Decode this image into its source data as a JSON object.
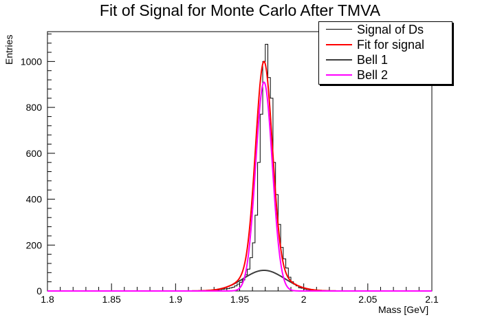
{
  "chart_data": {
    "type": "line",
    "title": "Fit of Signal for Monte Carlo After TMVA",
    "xlabel": "Mass [GeV]",
    "ylabel": "Entries",
    "xlim": [
      1.8,
      2.1
    ],
    "ylim": [
      0,
      1130
    ],
    "xticks": [
      1.8,
      1.85,
      1.9,
      1.95,
      2.0,
      2.05,
      2.1
    ],
    "xtick_labels": [
      "1.8",
      "1.85",
      "1.9",
      "1.95",
      "2",
      "2.05",
      "2.1"
    ],
    "yticks": [
      0,
      200,
      400,
      600,
      800,
      1000
    ],
    "ytick_labels": [
      "0",
      "200",
      "400",
      "600",
      "800",
      "1000"
    ],
    "legend_position": "top-right",
    "histogram": {
      "name": "Signal of Ds",
      "color": "#000000",
      "bin_width": 0.002,
      "bins": [
        {
          "x": 1.93,
          "y": 5
        },
        {
          "x": 1.932,
          "y": 4
        },
        {
          "x": 1.934,
          "y": 6
        },
        {
          "x": 1.936,
          "y": 7
        },
        {
          "x": 1.938,
          "y": 9
        },
        {
          "x": 1.94,
          "y": 10
        },
        {
          "x": 1.942,
          "y": 13
        },
        {
          "x": 1.944,
          "y": 16
        },
        {
          "x": 1.946,
          "y": 22
        },
        {
          "x": 1.948,
          "y": 30
        },
        {
          "x": 1.95,
          "y": 38
        },
        {
          "x": 1.952,
          "y": 48
        },
        {
          "x": 1.954,
          "y": 70
        },
        {
          "x": 1.956,
          "y": 95
        },
        {
          "x": 1.958,
          "y": 145
        },
        {
          "x": 1.96,
          "y": 210
        },
        {
          "x": 1.962,
          "y": 330
        },
        {
          "x": 1.964,
          "y": 560
        },
        {
          "x": 1.966,
          "y": 770
        },
        {
          "x": 1.968,
          "y": 1000
        },
        {
          "x": 1.97,
          "y": 1075
        },
        {
          "x": 1.972,
          "y": 930
        },
        {
          "x": 1.974,
          "y": 840
        },
        {
          "x": 1.976,
          "y": 560
        },
        {
          "x": 1.978,
          "y": 420
        },
        {
          "x": 1.98,
          "y": 290
        },
        {
          "x": 1.982,
          "y": 190
        },
        {
          "x": 1.984,
          "y": 140
        },
        {
          "x": 1.986,
          "y": 100
        },
        {
          "x": 1.988,
          "y": 60
        },
        {
          "x": 1.99,
          "y": 40
        },
        {
          "x": 1.992,
          "y": 30
        },
        {
          "x": 1.994,
          "y": 22
        },
        {
          "x": 1.996,
          "y": 14
        },
        {
          "x": 1.998,
          "y": 12
        },
        {
          "x": 2.0,
          "y": 8
        },
        {
          "x": 2.002,
          "y": 6
        },
        {
          "x": 2.004,
          "y": 5
        },
        {
          "x": 2.006,
          "y": 3
        },
        {
          "x": 2.008,
          "y": 2
        }
      ]
    },
    "series": [
      {
        "name": "Fit for signal",
        "color": "#ff0000",
        "mean": 1.969,
        "components": [
          {
            "amplitude": 910,
            "sigma": 0.0065
          },
          {
            "amplitude": 90,
            "sigma": 0.016
          }
        ]
      },
      {
        "name": "Bell 1",
        "color": "#3c3c3c",
        "mean": 1.969,
        "amplitude": 90,
        "sigma": 0.016
      },
      {
        "name": "Bell 2",
        "color": "#ff00ff",
        "mean": 1.969,
        "amplitude": 910,
        "sigma": 0.0065
      }
    ]
  }
}
